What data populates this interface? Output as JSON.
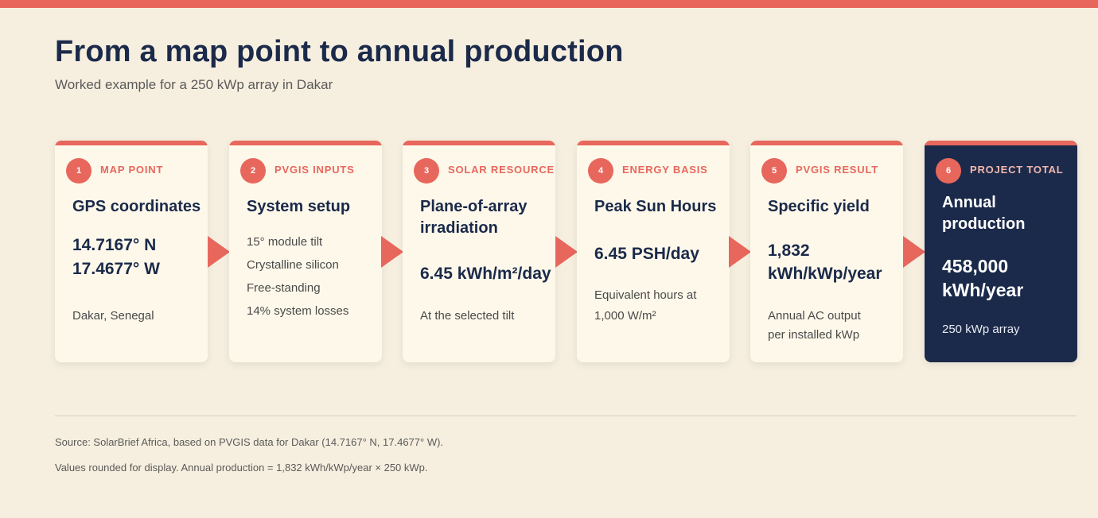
{
  "header": {
    "title": "From a map point to annual production",
    "subtitle": "Worked example for a 250 kWp array in Dakar"
  },
  "steps": [
    {
      "number": "1",
      "kicker": "MAP POINT",
      "heading": "GPS coordinates",
      "value_line1": "14.7167° N",
      "value_line2": "17.4677° W",
      "note": "Dakar, Senegal"
    },
    {
      "number": "2",
      "kicker": "PVGIS INPUTS",
      "heading": "System setup",
      "items": [
        "15° module tilt",
        "Crystalline silicon",
        "Free-standing",
        "14% system losses"
      ]
    },
    {
      "number": "3",
      "kicker": "SOLAR RESOURCE",
      "heading_line1": "Plane-of-array",
      "heading_line2": "irradiation",
      "value": "6.45 kWh/m²/day",
      "note": "At the selected tilt"
    },
    {
      "number": "4",
      "kicker": "ENERGY BASIS",
      "heading": "Peak Sun Hours",
      "value": "6.45 PSH/day",
      "note_line1": "Equivalent hours at",
      "note_line2": "1,000 W/m²"
    },
    {
      "number": "5",
      "kicker": "PVGIS RESULT",
      "heading": "Specific yield",
      "value_line1": "1,832",
      "value_line2": "kWh/kWp/year",
      "note_line1": "Annual AC output",
      "note_line2": "per installed kWp"
    },
    {
      "number": "6",
      "kicker": "PROJECT TOTAL",
      "heading_line1": "Annual",
      "heading_line2": "production",
      "value_line1": "458,000",
      "value_line2": "kWh/year",
      "note": "250 kWp array"
    }
  ],
  "footer": {
    "source": "Source: SolarBrief Africa, based on PVGIS data for Dakar (14.7167° N, 17.4677° W).",
    "note": "Values rounded for display. Annual production = 1,832 kWh/kWp/year × 250 kWp."
  },
  "colors": {
    "accent": "#e8675d",
    "navy": "#1b2a4a",
    "background": "#f6efdf",
    "card": "#fdf8ea"
  }
}
